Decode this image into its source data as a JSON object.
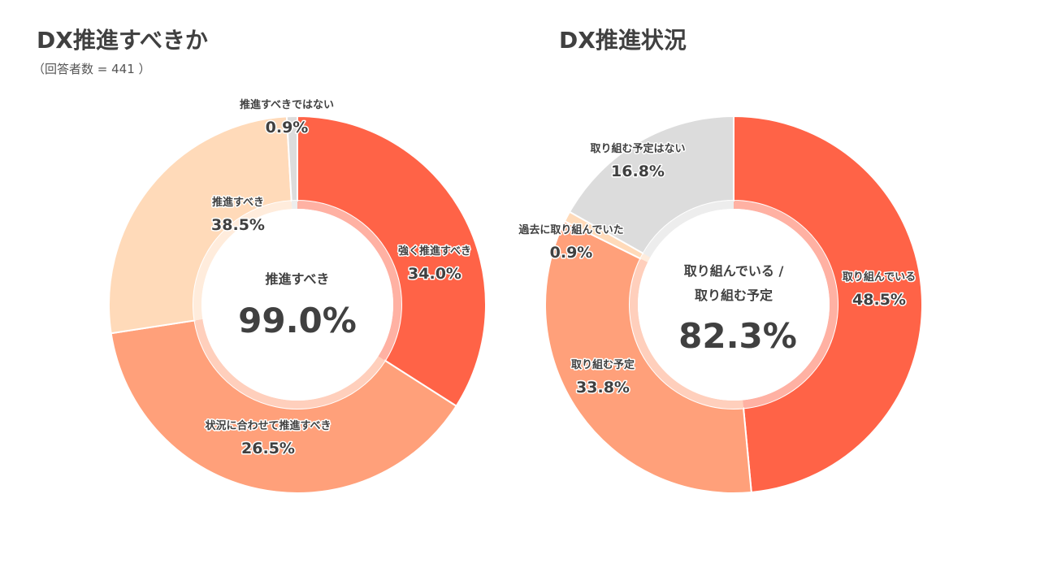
{
  "chart_data": [
    {
      "type": "pie",
      "title": "DX推進すべきか",
      "subtitle": "（回答者数 = 441 ）",
      "center_label": "推進すべき",
      "center_value": "99.0%",
      "slices": [
        {
          "label": "強く推進すべき",
          "value": 34.0,
          "display": "34.0%",
          "color": "#FF6347"
        },
        {
          "label": "推進すべき",
          "value": 38.5,
          "display": "38.5%",
          "color": "#FFA07A"
        },
        {
          "label": "状況に合わせて推進すべき",
          "value": 26.5,
          "display": "26.5%",
          "color": "#FFDAB9"
        },
        {
          "label": "推進すべきではない",
          "value": 0.9,
          "display": "0.9%",
          "color": "#DCDCDC"
        }
      ]
    },
    {
      "type": "pie",
      "title": "DX推進状況",
      "center_label": [
        "取り組んでいる /",
        "取り組む予定"
      ],
      "center_value": "82.3%",
      "slices": [
        {
          "label": "取り組んでいる",
          "value": 48.5,
          "display": "48.5%",
          "color": "#FF6347"
        },
        {
          "label": "取り組む予定",
          "value": 33.8,
          "display": "33.8%",
          "color": "#FFA07A"
        },
        {
          "label": "過去に取り組んでいた",
          "value": 0.9,
          "display": "0.9%",
          "color": "#FFDAB9"
        },
        {
          "label": "取り組む予定はない",
          "value": 16.8,
          "display": "16.8%",
          "color": "#DCDCDC"
        }
      ]
    }
  ]
}
